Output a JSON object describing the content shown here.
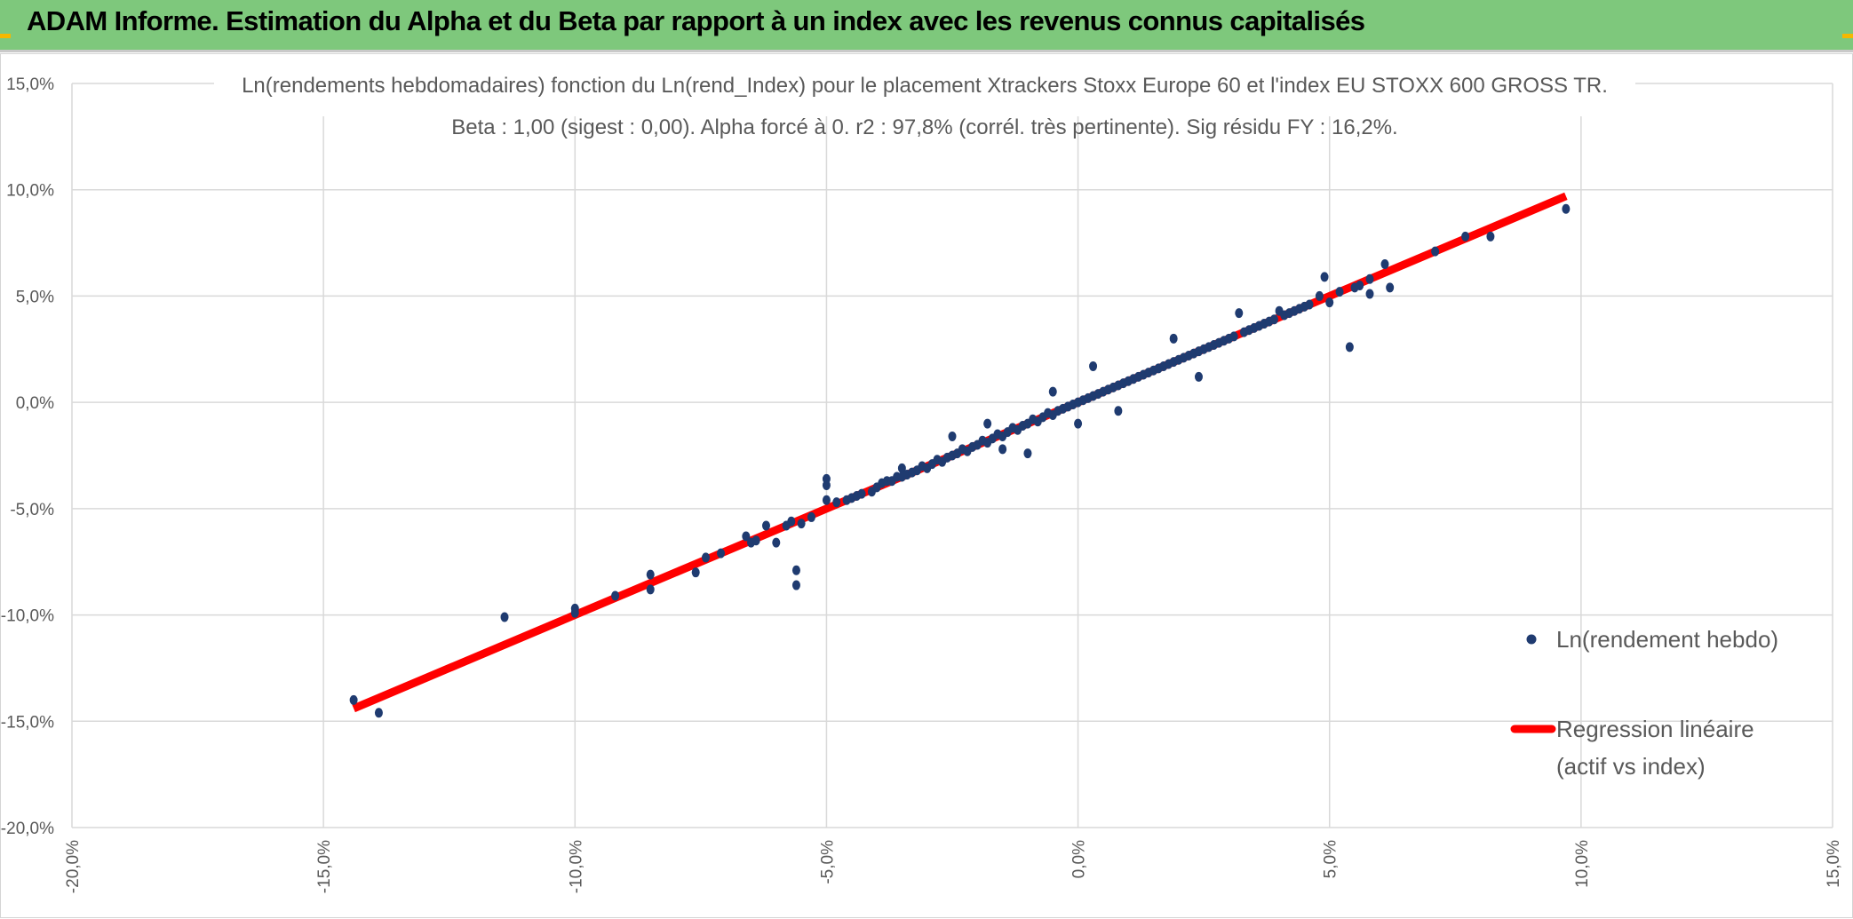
{
  "header": {
    "title": "ADAM Informe. Estimation du Alpha et du Beta par rapport à un index avec les revenus connus capitalisés",
    "background": "#7ec87c",
    "corner_color": "#f5b800"
  },
  "chart_data": {
    "type": "scatter",
    "title_line1": "Ln(rendements hebdomadaires) fonction du Ln(rend_Index) pour le placement Xtrackers Stoxx Europe 60 et l'index EU STOXX 600 GROSS TR.",
    "title_line2": "Beta : 1,00 (sigest : 0,00). Alpha forcé à 0. r2 : 97,8% (corrél. très pertinente). Sig résidu FY : 16,2%.",
    "xlim": [
      -0.2,
      0.15
    ],
    "ylim": [
      -0.2,
      0.15
    ],
    "x_ticks": [
      -0.2,
      -0.15,
      -0.1,
      -0.05,
      0.0,
      0.05,
      0.1,
      0.15
    ],
    "y_ticks": [
      -0.2,
      -0.15,
      -0.1,
      -0.05,
      0.0,
      0.05,
      0.1,
      0.15
    ],
    "x_tick_labels": [
      "-20,0%",
      "-15,0%",
      "-10,0%",
      "-5,0%",
      "0,0%",
      "5,0%",
      "10,0%",
      "15,0%"
    ],
    "y_tick_labels": [
      "-20,0%",
      "-15,0%",
      "-10,0%",
      "-5,0%",
      "0,0%",
      "5,0%",
      "10,0%",
      "15,0%"
    ],
    "grid": true,
    "legend_position": "right",
    "series": [
      {
        "name": "Ln(rendement hebdo)",
        "kind": "points",
        "color": "#1f3b70",
        "points": [
          [
            -0.144,
            -0.14
          ],
          [
            -0.139,
            -0.146
          ],
          [
            -0.114,
            -0.101
          ],
          [
            -0.1,
            -0.097
          ],
          [
            -0.1,
            -0.099
          ],
          [
            -0.092,
            -0.091
          ],
          [
            -0.085,
            -0.081
          ],
          [
            -0.085,
            -0.088
          ],
          [
            -0.076,
            -0.08
          ],
          [
            -0.074,
            -0.073
          ],
          [
            -0.071,
            -0.071
          ],
          [
            -0.066,
            -0.063
          ],
          [
            -0.065,
            -0.066
          ],
          [
            -0.064,
            -0.065
          ],
          [
            -0.062,
            -0.058
          ],
          [
            -0.06,
            -0.066
          ],
          [
            -0.058,
            -0.058
          ],
          [
            -0.057,
            -0.056
          ],
          [
            -0.056,
            -0.079
          ],
          [
            -0.056,
            -0.086
          ],
          [
            -0.055,
            -0.057
          ],
          [
            -0.053,
            -0.054
          ],
          [
            -0.05,
            -0.046
          ],
          [
            -0.05,
            -0.039
          ],
          [
            -0.05,
            -0.036
          ],
          [
            -0.048,
            -0.047
          ],
          [
            -0.046,
            -0.046
          ],
          [
            -0.045,
            -0.045
          ],
          [
            -0.044,
            -0.044
          ],
          [
            -0.043,
            -0.043
          ],
          [
            -0.041,
            -0.042
          ],
          [
            -0.04,
            -0.04
          ],
          [
            -0.039,
            -0.038
          ],
          [
            -0.038,
            -0.037
          ],
          [
            -0.037,
            -0.037
          ],
          [
            -0.036,
            -0.035
          ],
          [
            -0.035,
            -0.035
          ],
          [
            -0.035,
            -0.031
          ],
          [
            -0.034,
            -0.034
          ],
          [
            -0.033,
            -0.033
          ],
          [
            -0.032,
            -0.032
          ],
          [
            -0.031,
            -0.03
          ],
          [
            -0.03,
            -0.031
          ],
          [
            -0.029,
            -0.029
          ],
          [
            -0.028,
            -0.027
          ],
          [
            -0.027,
            -0.028
          ],
          [
            -0.026,
            -0.026
          ],
          [
            -0.025,
            -0.025
          ],
          [
            -0.025,
            -0.016
          ],
          [
            -0.024,
            -0.024
          ],
          [
            -0.023,
            -0.022
          ],
          [
            -0.022,
            -0.023
          ],
          [
            -0.021,
            -0.021
          ],
          [
            -0.02,
            -0.02
          ],
          [
            -0.019,
            -0.018
          ],
          [
            -0.018,
            -0.019
          ],
          [
            -0.018,
            -0.01
          ],
          [
            -0.017,
            -0.017
          ],
          [
            -0.016,
            -0.015
          ],
          [
            -0.015,
            -0.016
          ],
          [
            -0.015,
            -0.022
          ],
          [
            -0.014,
            -0.014
          ],
          [
            -0.013,
            -0.012
          ],
          [
            -0.012,
            -0.013
          ],
          [
            -0.011,
            -0.011
          ],
          [
            -0.01,
            -0.01
          ],
          [
            -0.01,
            -0.024
          ],
          [
            -0.009,
            -0.008
          ],
          [
            -0.008,
            -0.009
          ],
          [
            -0.007,
            -0.007
          ],
          [
            -0.006,
            -0.005
          ],
          [
            -0.005,
            -0.006
          ],
          [
            -0.005,
            0.005
          ],
          [
            -0.004,
            -0.004
          ],
          [
            -0.003,
            -0.003
          ],
          [
            -0.002,
            -0.002
          ],
          [
            -0.001,
            -0.001
          ],
          [
            0.0,
            0.0
          ],
          [
            0.0,
            -0.01
          ],
          [
            0.001,
            0.001
          ],
          [
            0.002,
            0.002
          ],
          [
            0.003,
            0.003
          ],
          [
            0.003,
            0.017
          ],
          [
            0.004,
            0.004
          ],
          [
            0.005,
            0.005
          ],
          [
            0.006,
            0.006
          ],
          [
            0.007,
            0.007
          ],
          [
            0.008,
            0.008
          ],
          [
            0.008,
            -0.004
          ],
          [
            0.009,
            0.009
          ],
          [
            0.01,
            0.01
          ],
          [
            0.011,
            0.011
          ],
          [
            0.012,
            0.012
          ],
          [
            0.013,
            0.013
          ],
          [
            0.014,
            0.014
          ],
          [
            0.015,
            0.015
          ],
          [
            0.016,
            0.016
          ],
          [
            0.017,
            0.017
          ],
          [
            0.018,
            0.018
          ],
          [
            0.019,
            0.019
          ],
          [
            0.019,
            0.03
          ],
          [
            0.02,
            0.02
          ],
          [
            0.021,
            0.021
          ],
          [
            0.022,
            0.022
          ],
          [
            0.023,
            0.023
          ],
          [
            0.024,
            0.024
          ],
          [
            0.024,
            0.012
          ],
          [
            0.025,
            0.025
          ],
          [
            0.026,
            0.026
          ],
          [
            0.027,
            0.027
          ],
          [
            0.028,
            0.028
          ],
          [
            0.029,
            0.029
          ],
          [
            0.03,
            0.03
          ],
          [
            0.031,
            0.031
          ],
          [
            0.032,
            0.042
          ],
          [
            0.033,
            0.033
          ],
          [
            0.034,
            0.034
          ],
          [
            0.035,
            0.035
          ],
          [
            0.036,
            0.036
          ],
          [
            0.037,
            0.037
          ],
          [
            0.038,
            0.038
          ],
          [
            0.039,
            0.039
          ],
          [
            0.04,
            0.043
          ],
          [
            0.041,
            0.041
          ],
          [
            0.042,
            0.042
          ],
          [
            0.043,
            0.043
          ],
          [
            0.044,
            0.044
          ],
          [
            0.045,
            0.045
          ],
          [
            0.046,
            0.046
          ],
          [
            0.048,
            0.05
          ],
          [
            0.049,
            0.059
          ],
          [
            0.05,
            0.047
          ],
          [
            0.052,
            0.052
          ],
          [
            0.054,
            0.026
          ],
          [
            0.055,
            0.054
          ],
          [
            0.056,
            0.055
          ],
          [
            0.058,
            0.058
          ],
          [
            0.058,
            0.051
          ],
          [
            0.061,
            0.065
          ],
          [
            0.062,
            0.054
          ],
          [
            0.071,
            0.071
          ],
          [
            0.077,
            0.078
          ],
          [
            0.082,
            0.078
          ],
          [
            0.097,
            0.091
          ]
        ]
      },
      {
        "name": "Regression linéaire",
        "name_line2": "(actif vs index)",
        "kind": "line",
        "color": "#ff0000",
        "beta": 1.0,
        "alpha": 0.0,
        "x_range": [
          -0.144,
          0.097
        ]
      }
    ]
  }
}
